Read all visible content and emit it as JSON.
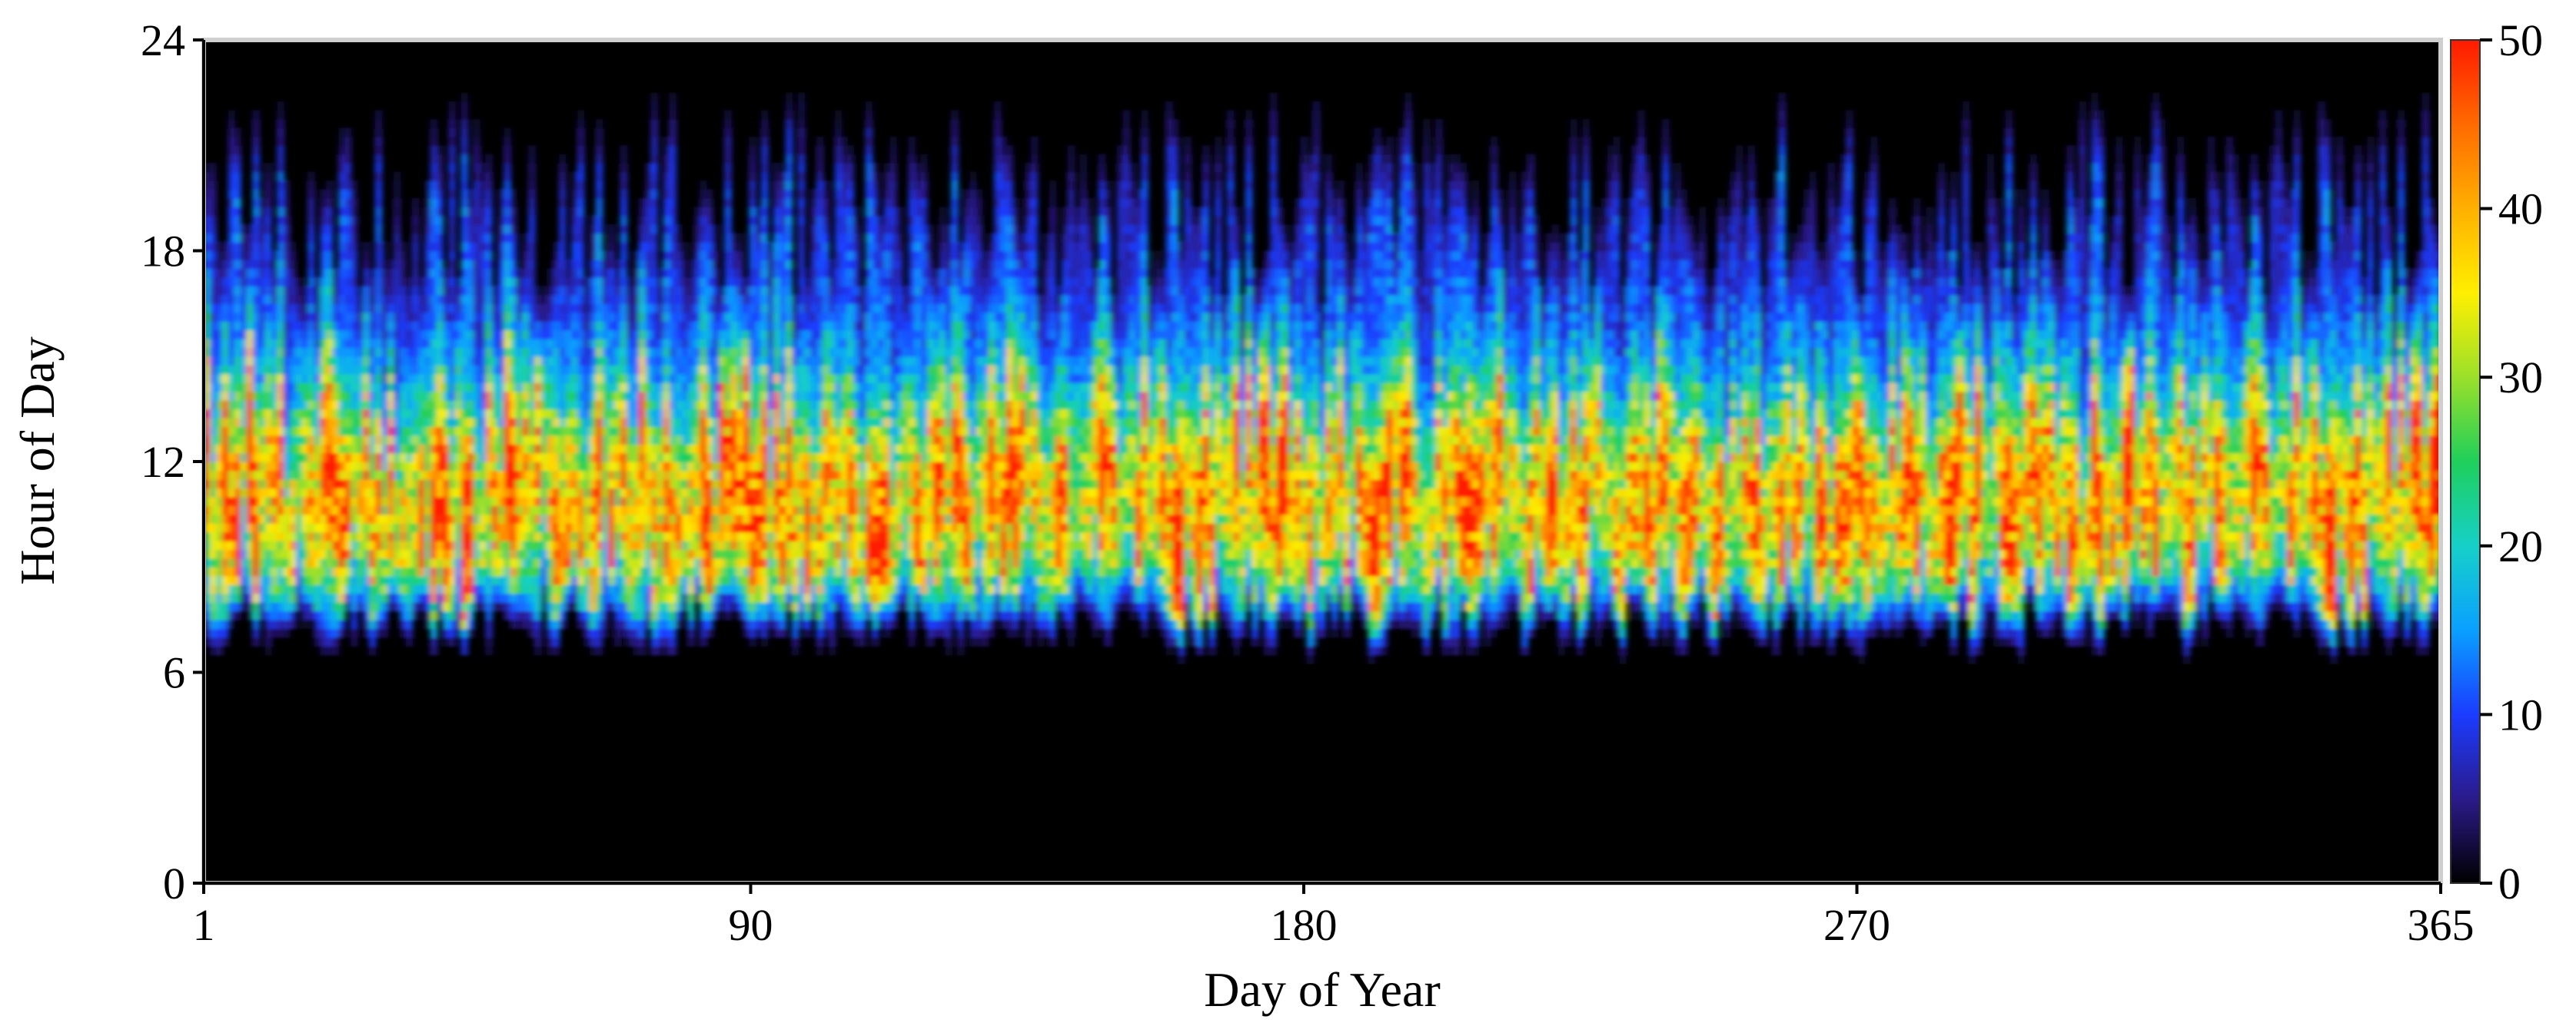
{
  "chart_data": {
    "type": "heatmap",
    "title": "",
    "xlabel": "Day of Year",
    "ylabel": "Hour of Day",
    "x_range": [
      1,
      365
    ],
    "y_range": [
      0,
      24
    ],
    "x_ticks": [
      "1",
      "90",
      "180",
      "270",
      "365"
    ],
    "x_tick_values": [
      1,
      90,
      180,
      270,
      365
    ],
    "y_ticks": [
      "24",
      "18",
      "12",
      "6",
      "0"
    ],
    "y_tick_values": [
      24,
      18,
      12,
      6,
      0
    ],
    "colorbar": {
      "range": [
        0,
        50
      ],
      "ticks": [
        "50",
        "40",
        "30",
        "20",
        "10",
        "0"
      ],
      "tick_values": [
        50,
        40,
        30,
        20,
        10,
        0
      ],
      "colors": [
        "#000000",
        "#2b1a8a",
        "#1b3cff",
        "#0aa0ff",
        "#16d0c8",
        "#1fcf5a",
        "#9be02a",
        "#ffef00",
        "#ffb000",
        "#ff6a00",
        "#ff1a00"
      ]
    },
    "pattern": {
      "active_hours": [
        6,
        22
      ],
      "peak_hours": [
        9,
        14
      ],
      "peak_value": 45,
      "background": "#000000"
    },
    "grid": false,
    "legend": "colorbar-right"
  }
}
